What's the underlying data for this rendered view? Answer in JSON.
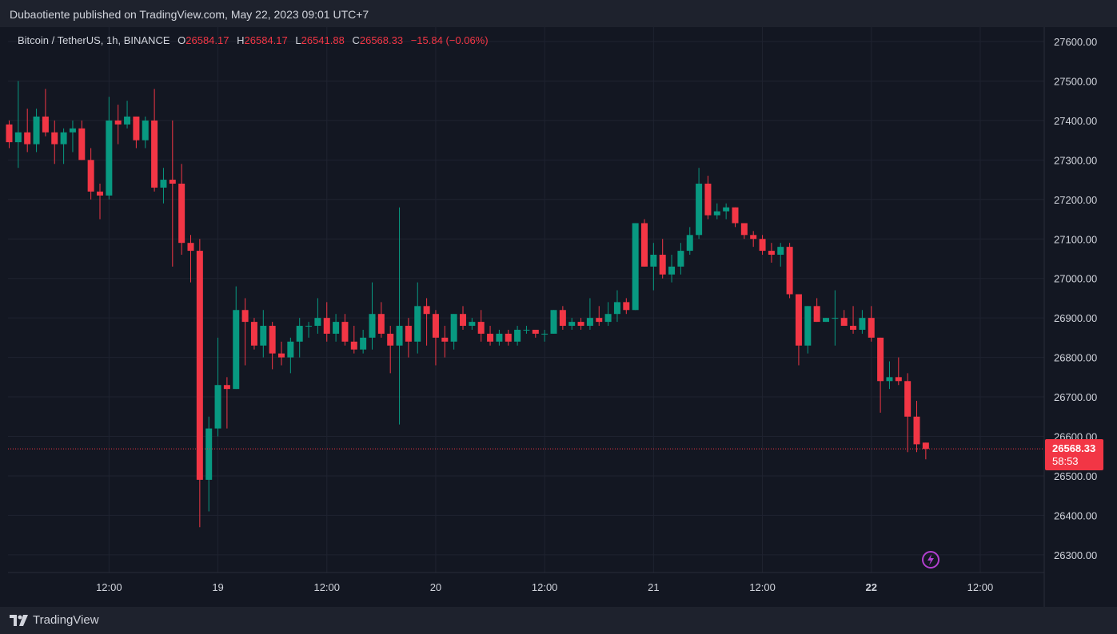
{
  "header": {
    "published": "Dubaotiente published on TradingView.com, May 22, 2023 09:01 UTC+7"
  },
  "legend": {
    "symbol": "Bitcoin / TetherUS, 1h, BINANCE",
    "o_label": "O",
    "o_value": "26584.17",
    "h_label": "H",
    "h_value": "26584.17",
    "l_label": "L",
    "l_value": "26541.88",
    "c_label": "C",
    "c_value": "26568.33",
    "change": "−15.84 (−0.06%)"
  },
  "last_price": {
    "price": "26568.33",
    "countdown": "58:53",
    "value": 26568.33
  },
  "footer": {
    "brand": "TradingView"
  },
  "colors": {
    "background": "#131722",
    "up": "#089981",
    "down": "#f23645",
    "grid": "#1f2330",
    "text": "#d1d4dc",
    "accent": "#b23fcf"
  },
  "icons": {
    "logo": "tradingview-logo-icon",
    "bolt": "lightning-icon"
  },
  "chart_data": {
    "type": "candlestick",
    "symbol": "Bitcoin / TetherUS",
    "interval": "1h",
    "exchange": "BINANCE",
    "ylim": [
      26250,
      27650
    ],
    "y_ticks": [
      {
        "v": 27600,
        "t": "27600.00"
      },
      {
        "v": 27500,
        "t": "27500.00"
      },
      {
        "v": 27400,
        "t": "27400.00"
      },
      {
        "v": 27300,
        "t": "27300.00"
      },
      {
        "v": 27200,
        "t": "27200.00"
      },
      {
        "v": 27100,
        "t": "27100.00"
      },
      {
        "v": 27000,
        "t": "27000.00"
      },
      {
        "v": 26900,
        "t": "26900.00"
      },
      {
        "v": 26800,
        "t": "26800.00"
      },
      {
        "v": 26700,
        "t": "26700.00"
      },
      {
        "v": 26600,
        "t": "26600.00"
      },
      {
        "v": 26500,
        "t": "26500.00"
      },
      {
        "v": 26400,
        "t": "26400.00"
      },
      {
        "v": 26300,
        "t": "26300.00"
      }
    ],
    "x_ticks": [
      {
        "i": 11,
        "t": "12:00",
        "bold": false
      },
      {
        "i": 23,
        "t": "19",
        "bold": false
      },
      {
        "i": 35,
        "t": "12:00",
        "bold": false
      },
      {
        "i": 47,
        "t": "20",
        "bold": false
      },
      {
        "i": 59,
        "t": "12:00",
        "bold": false
      },
      {
        "i": 71,
        "t": "21",
        "bold": false
      },
      {
        "i": 83,
        "t": "12:00",
        "bold": false
      },
      {
        "i": 95,
        "t": "22",
        "bold": true
      },
      {
        "i": 107,
        "t": "12:00",
        "bold": false
      }
    ],
    "grid": true,
    "candles": [
      [
        27390,
        27400,
        27330,
        27345
      ],
      [
        27345,
        27500,
        27280,
        27370
      ],
      [
        27370,
        27430,
        27320,
        27340
      ],
      [
        27340,
        27430,
        27320,
        27410
      ],
      [
        27410,
        27480,
        27360,
        27370
      ],
      [
        27370,
        27400,
        27290,
        27340
      ],
      [
        27340,
        27380,
        27290,
        27370
      ],
      [
        27370,
        27400,
        27320,
        27380
      ],
      [
        27380,
        27400,
        27300,
        27300
      ],
      [
        27300,
        27330,
        27200,
        27220
      ],
      [
        27220,
        27240,
        27150,
        27210
      ],
      [
        27210,
        27460,
        27200,
        27400
      ],
      [
        27400,
        27440,
        27340,
        27390
      ],
      [
        27390,
        27450,
        27380,
        27410
      ],
      [
        27410,
        27410,
        27330,
        27350
      ],
      [
        27350,
        27410,
        27330,
        27400
      ],
      [
        27400,
        27480,
        27220,
        27230
      ],
      [
        27230,
        27280,
        27190,
        27250
      ],
      [
        27250,
        27400,
        27030,
        27240
      ],
      [
        27240,
        27290,
        27060,
        27090
      ],
      [
        27090,
        27110,
        26990,
        27070
      ],
      [
        27070,
        27100,
        26370,
        26490
      ],
      [
        26490,
        26650,
        26410,
        26620
      ],
      [
        26620,
        26850,
        26600,
        26730
      ],
      [
        26730,
        26750,
        26620,
        26720
      ],
      [
        26720,
        26980,
        26720,
        26920
      ],
      [
        26920,
        26950,
        26780,
        26890
      ],
      [
        26890,
        26900,
        26820,
        26830
      ],
      [
        26830,
        26920,
        26800,
        26880
      ],
      [
        26880,
        26890,
        26770,
        26810
      ],
      [
        26810,
        26840,
        26780,
        26800
      ],
      [
        26800,
        26850,
        26760,
        26840
      ],
      [
        26840,
        26900,
        26800,
        26880
      ],
      [
        26880,
        26890,
        26850,
        26880
      ],
      [
        26880,
        26950,
        26860,
        26900
      ],
      [
        26900,
        26940,
        26840,
        26860
      ],
      [
        26860,
        26910,
        26840,
        26890
      ],
      [
        26890,
        26910,
        26830,
        26840
      ],
      [
        26840,
        26880,
        26810,
        26820
      ],
      [
        26820,
        26870,
        26810,
        26850
      ],
      [
        26850,
        26990,
        26820,
        26910
      ],
      [
        26910,
        26940,
        26850,
        26860
      ],
      [
        26860,
        26880,
        26760,
        26830
      ],
      [
        26830,
        27180,
        26630,
        26880
      ],
      [
        26880,
        26900,
        26800,
        26840
      ],
      [
        26840,
        26990,
        26810,
        26930
      ],
      [
        26930,
        26950,
        26830,
        26910
      ],
      [
        26910,
        26920,
        26780,
        26850
      ],
      [
        26850,
        26880,
        26800,
        26840
      ],
      [
        26840,
        26910,
        26820,
        26910
      ],
      [
        26910,
        26930,
        26870,
        26880
      ],
      [
        26880,
        26900,
        26870,
        26890
      ],
      [
        26890,
        26920,
        26840,
        26860
      ],
      [
        26860,
        26880,
        26830,
        26840
      ],
      [
        26840,
        26870,
        26830,
        26860
      ],
      [
        26860,
        26870,
        26830,
        26840
      ],
      [
        26840,
        26880,
        26830,
        26870
      ],
      [
        26870,
        26880,
        26860,
        26870
      ],
      [
        26870,
        26870,
        26850,
        26860
      ],
      [
        26860,
        26870,
        26840,
        26860
      ],
      [
        26860,
        26920,
        26860,
        26920
      ],
      [
        26920,
        26930,
        26870,
        26880
      ],
      [
        26880,
        26900,
        26870,
        26890
      ],
      [
        26890,
        26900,
        26870,
        26880
      ],
      [
        26880,
        26950,
        26870,
        26900
      ],
      [
        26900,
        26930,
        26880,
        26890
      ],
      [
        26890,
        26940,
        26880,
        26910
      ],
      [
        26910,
        26970,
        26890,
        26940
      ],
      [
        26940,
        26950,
        26910,
        26920
      ],
      [
        26920,
        27140,
        26920,
        27140
      ],
      [
        27140,
        27150,
        27030,
        27030
      ],
      [
        27030,
        27090,
        26970,
        27060
      ],
      [
        27060,
        27100,
        27000,
        27010
      ],
      [
        27010,
        27060,
        26990,
        27030
      ],
      [
        27030,
        27090,
        27010,
        27070
      ],
      [
        27070,
        27130,
        27060,
        27110
      ],
      [
        27110,
        27280,
        27100,
        27240
      ],
      [
        27240,
        27260,
        27150,
        27160
      ],
      [
        27160,
        27190,
        27150,
        27170
      ],
      [
        27170,
        27190,
        27150,
        27180
      ],
      [
        27180,
        27180,
        27130,
        27140
      ],
      [
        27140,
        27140,
        27100,
        27110
      ],
      [
        27110,
        27120,
        27080,
        27100
      ],
      [
        27100,
        27110,
        27060,
        27070
      ],
      [
        27070,
        27090,
        27040,
        27060
      ],
      [
        27060,
        27090,
        27030,
        27080
      ],
      [
        27080,
        27090,
        26950,
        26960
      ],
      [
        26960,
        26960,
        26780,
        26830
      ],
      [
        26830,
        26930,
        26810,
        26930
      ],
      [
        26930,
        26950,
        26890,
        26890
      ],
      [
        26890,
        26900,
        26890,
        26900
      ],
      [
        26900,
        26970,
        26830,
        26900
      ],
      [
        26900,
        26920,
        26880,
        26880
      ],
      [
        26880,
        26930,
        26860,
        26870
      ],
      [
        26870,
        26920,
        26860,
        26900
      ],
      [
        26900,
        26930,
        26840,
        26850
      ],
      [
        26850,
        26850,
        26660,
        26740
      ],
      [
        26740,
        26790,
        26720,
        26750
      ],
      [
        26750,
        26800,
        26730,
        26740
      ],
      [
        26740,
        26760,
        26560,
        26650
      ],
      [
        26650,
        26690,
        26560,
        26580
      ],
      [
        26584.17,
        26584.17,
        26541.88,
        26568.33
      ]
    ]
  }
}
